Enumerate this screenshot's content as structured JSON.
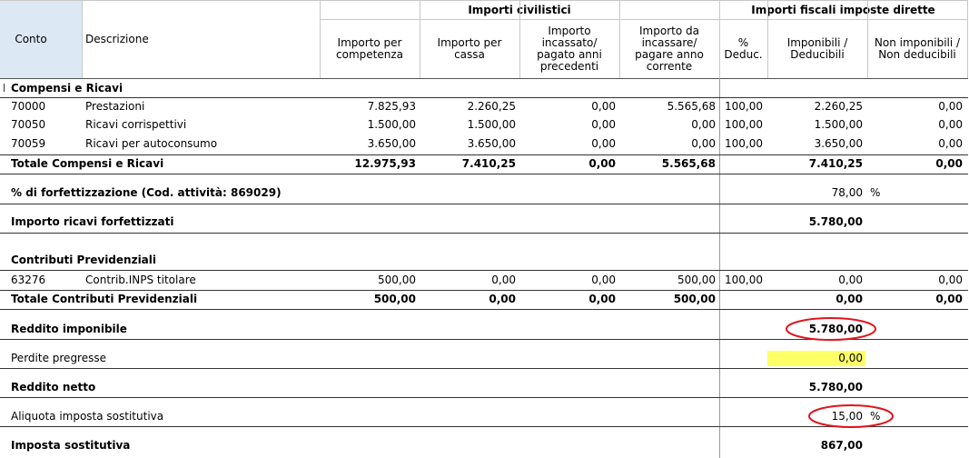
{
  "header": {
    "conto": "Conto",
    "descrizione": "Descrizione",
    "civilistici": "Importi civilistici",
    "fiscali": "Importi fiscali imposte dirette",
    "columns": [
      "Importo per\ncompetenza",
      "Importo per\ncassa",
      "Importo\nincassato/\npagato anni\nprecedenti",
      "Importo da\nincassare/\npagare anno\ncorrente",
      "%\nDeduc.",
      "Imponibili /\nDeducibili",
      "Non imponibili /\nNon deducibili"
    ]
  },
  "sections": [
    {
      "title": "Compensi e Ricavi",
      "rows": [
        {
          "conto": "70000",
          "descrizione": "Prestazioni",
          "values": [
            "7.825,93",
            "2.260,25",
            "0,00",
            "5.565,68",
            "100,00",
            "2.260,25",
            "0,00"
          ]
        },
        {
          "conto": "70050",
          "descrizione": "Ricavi corrispettivi",
          "values": [
            "1.500,00",
            "1.500,00",
            "0,00",
            "0,00",
            "100,00",
            "1.500,00",
            "0,00"
          ]
        },
        {
          "conto": "70059",
          "descrizione": "Ricavi per autoconsumo",
          "values": [
            "3.650,00",
            "3.650,00",
            "0,00",
            "0,00",
            "100,00",
            "3.650,00",
            "0,00"
          ]
        }
      ],
      "total": {
        "label": "Totale Compensi e Ricavi",
        "values": [
          "12.975,93",
          "7.410,25",
          "0,00",
          "5.565,68",
          "7.410,25",
          "0,00"
        ]
      }
    },
    {
      "title": "Contributi Previdenziali",
      "rows": [
        {
          "conto": "63276",
          "descrizione": "Contrib.INPS titolare",
          "values": [
            "500,00",
            "0,00",
            "0,00",
            "500,00",
            "100,00",
            "0,00",
            "0,00"
          ]
        }
      ],
      "total": {
        "label": "Totale Contributi Previdenziali",
        "values": [
          "500,00",
          "0,00",
          "0,00",
          "500,00",
          "0,00",
          "0,00"
        ]
      }
    }
  ],
  "forfettizzazione": {
    "label": "% di forfettizzazione (Cod. attività: 869029)",
    "value": "78,00",
    "unit": "%"
  },
  "ricavi_forfettizzati": {
    "label": "Importo ricavi forfettizzati",
    "value": "5.780,00"
  },
  "summary": [
    {
      "label": "Reddito imponibile",
      "value": "5.780,00"
    },
    {
      "label": "Perdite pregresse",
      "value": "0,00"
    },
    {
      "label": "Reddito netto",
      "value": "5.780,00"
    },
    {
      "label": "Aliquota imposta sostitutiva",
      "value": "15,00",
      "unit": "%"
    },
    {
      "label": "Imposta sostitutiva",
      "value": "867,00"
    }
  ]
}
